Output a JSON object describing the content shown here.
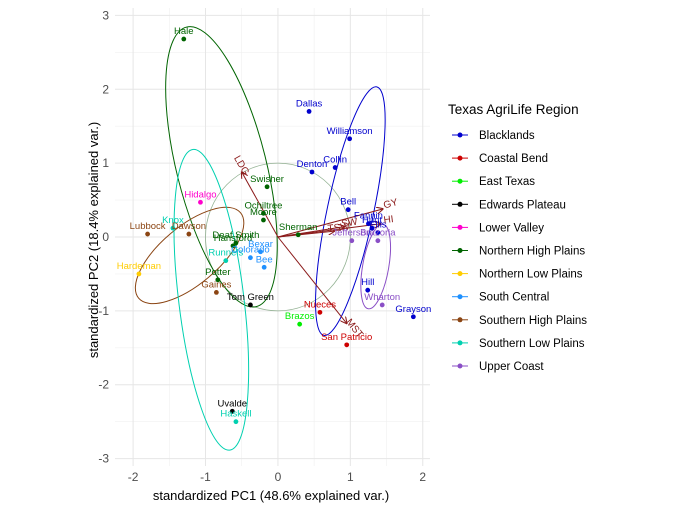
{
  "chart_data": {
    "type": "scatter",
    "xlabel": "standardized PC1 (48.6% explained var.)",
    "ylabel": "standardized PC2 (18.4% explained var.)",
    "xlim": [
      -2.25,
      2.1
    ],
    "ylim": [
      -3.1,
      3.1
    ],
    "xticks": [
      -2,
      -1,
      0,
      1,
      2
    ],
    "yticks": [
      -3,
      -2,
      -1,
      0,
      1,
      2,
      3
    ],
    "grid": true,
    "legend": {
      "title": "Texas AgriLife Region",
      "position": "right"
    },
    "circle_radius": 1,
    "regions": [
      {
        "name": "Blacklands",
        "color": "#0000cd"
      },
      {
        "name": "Coastal Bend",
        "color": "#cd0000"
      },
      {
        "name": "East Texas",
        "color": "#00ee00"
      },
      {
        "name": "Edwards Plateau",
        "color": "#000000"
      },
      {
        "name": "Lower Valley",
        "color": "#ff00cc"
      },
      {
        "name": "Northern High Plains",
        "color": "#006400"
      },
      {
        "name": "Northern Low Plains",
        "color": "#ffcc00"
      },
      {
        "name": "South Central",
        "color": "#1e90ff"
      },
      {
        "name": "Southern High Plains",
        "color": "#8b4513"
      },
      {
        "name": "Southern Low Plains",
        "color": "#00d0b0"
      },
      {
        "name": "Upper Coast",
        "color": "#8a4fc6"
      }
    ],
    "points": [
      {
        "label": "Hale",
        "region": "Northern High Plains",
        "x": -1.3,
        "y": 2.68
      },
      {
        "label": "Dallas",
        "region": "Blacklands",
        "x": 0.43,
        "y": 1.7
      },
      {
        "label": "Williamson",
        "region": "Blacklands",
        "x": 0.99,
        "y": 1.33
      },
      {
        "label": "Collin",
        "region": "Blacklands",
        "x": 0.79,
        "y": 0.94
      },
      {
        "label": "Denton",
        "region": "Blacklands",
        "x": 0.47,
        "y": 0.88
      },
      {
        "label": "Bell",
        "region": "Blacklands",
        "x": 0.97,
        "y": 0.37
      },
      {
        "label": "Fannin",
        "region": "Blacklands",
        "x": 1.25,
        "y": 0.18
      },
      {
        "label": "Ellis",
        "region": "Blacklands",
        "x": 1.38,
        "y": 0.06
      },
      {
        "label": "Hunt",
        "region": "Blacklands",
        "x": 1.3,
        "y": 0.12
      },
      {
        "label": "Hill",
        "region": "Blacklands",
        "x": 1.24,
        "y": -0.72
      },
      {
        "label": "Grayson",
        "region": "Blacklands",
        "x": 1.87,
        "y": -1.08
      },
      {
        "label": "Swisher",
        "region": "Northern High Plains",
        "x": -0.15,
        "y": 0.68
      },
      {
        "label": "Ochiltree",
        "region": "Northern High Plains",
        "x": -0.2,
        "y": 0.32
      },
      {
        "label": "Moore",
        "region": "Northern High Plains",
        "x": -0.2,
        "y": 0.23
      },
      {
        "label": "Sherman",
        "region": "Northern High Plains",
        "x": 0.28,
        "y": 0.03
      },
      {
        "label": "Deaf Smith",
        "region": "Northern High Plains",
        "x": -0.58,
        "y": -0.08
      },
      {
        "label": "Hansford",
        "region": "Northern High Plains",
        "x": -0.62,
        "y": -0.12
      },
      {
        "label": "Hidalgo",
        "region": "Lower Valley",
        "x": -1.07,
        "y": 0.47
      },
      {
        "label": "Lubbock",
        "region": "Southern High Plains",
        "x": -1.8,
        "y": 0.04
      },
      {
        "label": "Dawson",
        "region": "Southern High Plains",
        "x": -1.23,
        "y": 0.04
      },
      {
        "label": "Gaines",
        "region": "Southern High Plains",
        "x": -0.85,
        "y": -0.75
      },
      {
        "label": "Potter",
        "region": "Northern High Plains",
        "x": -0.83,
        "y": -0.58
      },
      {
        "label": "Hardeman",
        "region": "Northern Low Plains",
        "x": -1.92,
        "y": -0.5
      },
      {
        "label": "Knox",
        "region": "Southern Low Plains",
        "x": -1.45,
        "y": 0.12
      },
      {
        "label": "Runnels",
        "region": "Southern Low Plains",
        "x": -0.72,
        "y": -0.32
      },
      {
        "label": "Haskell",
        "region": "Southern Low Plains",
        "x": -0.58,
        "y": -2.5
      },
      {
        "label": "Uvalde",
        "region": "Edwards Plateau",
        "x": -0.63,
        "y": -2.36
      },
      {
        "label": "Tom Green",
        "region": "Edwards Plateau",
        "x": -0.38,
        "y": -0.92
      },
      {
        "label": "Bexar",
        "region": "South Central",
        "x": -0.24,
        "y": -0.2
      },
      {
        "label": "Colorado",
        "region": "South Central",
        "x": -0.38,
        "y": -0.28
      },
      {
        "label": "Bee",
        "region": "South Central",
        "x": -0.19,
        "y": -0.41
      },
      {
        "label": "Nueces",
        "region": "Coastal Bend",
        "x": 0.58,
        "y": -1.02
      },
      {
        "label": "San Patricio",
        "region": "Coastal Bend",
        "x": 0.95,
        "y": -1.46
      },
      {
        "label": "Brazos",
        "region": "East Texas",
        "x": 0.3,
        "y": -1.18
      },
      {
        "label": "Jefferson",
        "region": "Upper Coast",
        "x": 1.02,
        "y": -0.05
      },
      {
        "label": "Brazoria",
        "region": "Upper Coast",
        "x": 1.38,
        "y": -0.05
      },
      {
        "label": "Wharton",
        "region": "Upper Coast",
        "x": 1.44,
        "y": -0.92
      }
    ],
    "vectors": [
      {
        "label": "LDG",
        "x": -0.5,
        "y": 0.88
      },
      {
        "label": "GY",
        "x": 1.45,
        "y": 0.38
      },
      {
        "label": "HI",
        "x": 1.42,
        "y": 0.18
      },
      {
        "label": "SW",
        "x": 0.92,
        "y": 0.14
      },
      {
        "label": "TSW",
        "x": 0.78,
        "y": 0.08
      },
      {
        "label": "MST",
        "x": 0.95,
        "y": -1.17
      }
    ],
    "ellipses": [
      {
        "region": "Northern High Plains",
        "cx": -0.78,
        "cy": 0.95,
        "rx": 0.62,
        "ry": 1.95,
        "angle": -14
      },
      {
        "region": "Blacklands",
        "cx": 1.0,
        "cy": 0.35,
        "rx": 0.32,
        "ry": 1.72,
        "angle": 12
      },
      {
        "region": "Southern High Plains",
        "cx": -1.22,
        "cy": -0.25,
        "rx": 0.4,
        "ry": 0.9,
        "angle": 50
      },
      {
        "region": "Southern Low Plains",
        "cx": -0.92,
        "cy": -0.85,
        "rx": 0.45,
        "ry": 2.05,
        "angle": -7
      },
      {
        "region": "Upper Coast",
        "cx": 1.35,
        "cy": -0.4,
        "rx": 0.18,
        "ry": 0.58,
        "angle": 10
      }
    ]
  }
}
